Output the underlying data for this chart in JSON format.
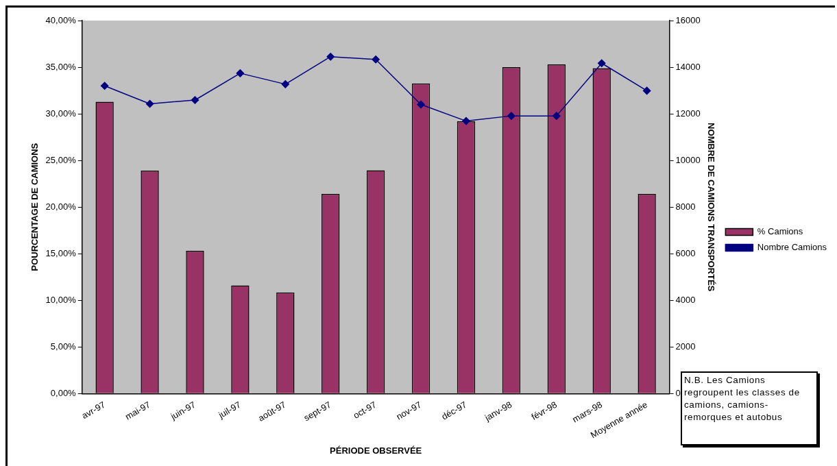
{
  "chart_data": {
    "type": "bar",
    "xlabel": "PÉRIODE OBSERVÉE",
    "ylabel": "POURCENTAGE DE CAMIONS",
    "y2label": "NOMBRE DE CAMIONS TRANSPORTÉS",
    "categories": [
      "avr-97",
      "mai-97",
      "juin-97",
      "juil-97",
      "août-97",
      "sept-97",
      "oct-97",
      "nov-97",
      "déc-97",
      "janv-98",
      "févr-98",
      "mars-98",
      "Moyenne année"
    ],
    "series": [
      {
        "name": "% Camions",
        "color": "#993366",
        "values": [
          31.3,
          23.9,
          15.3,
          11.6,
          10.85,
          21.4,
          23.95,
          33.25,
          29.2,
          35.0,
          35.3,
          34.9,
          21.4
        ]
      },
      {
        "name": "Nombre Camions",
        "type": "line",
        "axis": "y2",
        "color": "#000080",
        "marker": "diamond",
        "values": [
          13200,
          12430,
          12590,
          13740,
          13270,
          14450,
          14330,
          12400,
          11690,
          11910,
          11910,
          14170,
          12990
        ]
      }
    ],
    "ylim": [
      0,
      40
    ],
    "yticks": [
      {
        "value": 0,
        "label": "0,00%"
      },
      {
        "value": 5,
        "label": "5,00%"
      },
      {
        "value": 10,
        "label": "10,00%"
      },
      {
        "value": 15,
        "label": "15,00%"
      },
      {
        "value": 20,
        "label": "20,00%"
      },
      {
        "value": 25,
        "label": "25,00%"
      },
      {
        "value": 30,
        "label": "30,00%"
      },
      {
        "value": 35,
        "label": "35,00%"
      },
      {
        "value": 40,
        "label": "40,00%"
      }
    ],
    "y2lim": [
      0,
      16000
    ],
    "y2ticks": [
      0,
      2000,
      4000,
      6000,
      8000,
      10000,
      12000,
      14000,
      16000
    ],
    "grid": false,
    "legend": "right",
    "annotations": [
      "N.B. Les Camions regroupent les classes de camions, camions-remorques et autobus"
    ]
  }
}
